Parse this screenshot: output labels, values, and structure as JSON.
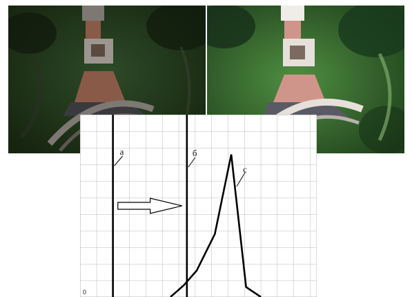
{
  "figure": {
    "photo_left": {
      "tone": "dark",
      "colors": {
        "grass": "#243b1e",
        "brick": "#8a5a48",
        "pavement": "#3a3a3e",
        "stone": "#9d9690"
      }
    },
    "photo_right": {
      "tone": "enhanced",
      "colors": {
        "grass": "#3f7a36",
        "brick": "#d0958a",
        "pavement": "#5a5a66",
        "stone": "#e6e0da"
      }
    }
  },
  "diagram": {
    "origin_label": "0",
    "line_a": {
      "label": "а",
      "x": 2.0
    },
    "line_b": {
      "label": "б",
      "x": 6.5
    },
    "curve_c": {
      "label": "с"
    },
    "arrow": {
      "from_x": 2.3,
      "to_x": 6.2,
      "y": 5.5
    },
    "chart_data": {
      "type": "line",
      "xlim": [
        0,
        14.4
      ],
      "ylim": [
        0,
        11
      ],
      "grid": true,
      "series": [
        {
          "x": [
            5.5,
            6.3,
            7.1,
            8.2,
            9.2,
            10.1,
            11.0
          ],
          "y": [
            0,
            0.7,
            1.6,
            3.8,
            8.6,
            0.6,
            0
          ]
        }
      ]
    }
  }
}
